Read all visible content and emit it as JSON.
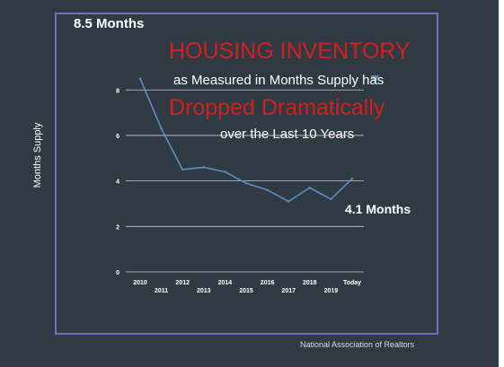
{
  "annotations": {
    "start_value": "8.5 Months",
    "headline_line1": "HOUSING INVENTORY",
    "subline_line1": "as Measured in Months Supply has",
    "headline_line2": "Dropped Dramatically",
    "subline_line2": "over the Last 10 Years",
    "end_value": "4.1 Months",
    "source": "National Association of Realtors"
  },
  "colors": {
    "background": "#2f3a43",
    "frame": "#6b6fc2",
    "line": "#5b8ec4",
    "headline": "#d41f1f",
    "grid": "#c8ccd0",
    "text": "#ffffff"
  },
  "chart_data": {
    "type": "line",
    "title": "",
    "xlabel": "",
    "ylabel": "Months Supply",
    "categories": [
      "2010",
      "2011",
      "2012",
      "2013",
      "2014",
      "2015",
      "2016",
      "2017",
      "2018",
      "2019",
      "Today"
    ],
    "values": [
      8.5,
      6.3,
      4.5,
      4.6,
      4.4,
      3.9,
      3.6,
      3.1,
      3.7,
      3.2,
      4.1
    ],
    "yticks": [
      0,
      2,
      4,
      6,
      8
    ],
    "ylim": [
      0,
      8.8
    ],
    "grid": true,
    "legend": "none"
  }
}
